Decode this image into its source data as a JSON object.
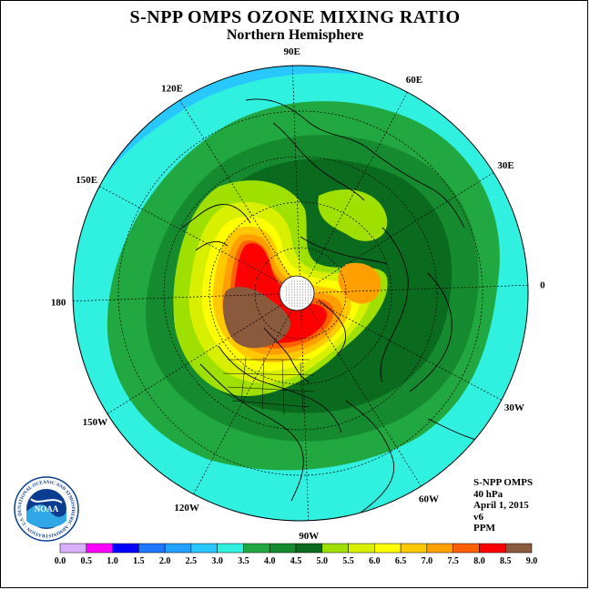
{
  "title": "S-NPP OMPS OZONE MIXING RATIO",
  "subtitle": "Northern Hemisphere",
  "info": {
    "instrument": "S-NPP OMPS",
    "level": "40 hPa",
    "date": "April 1, 2015",
    "version": "v6",
    "units": "PPM"
  },
  "logo": {
    "text": "NOAA",
    "ring_text": "NATIONAL OCEANIC AND ATMOSPHERIC ADMINISTRATION · U.S. DEPARTMENT OF COMMERCE"
  },
  "longitude_labels": [
    "90E",
    "60E",
    "30E",
    "0",
    "30W",
    "60W",
    "90W",
    "120W",
    "150W",
    "180",
    "150E",
    "120E"
  ],
  "colorbar": {
    "ticks": [
      "0.0",
      "0.5",
      "1.0",
      "1.5",
      "2.0",
      "2.5",
      "3.0",
      "3.5",
      "4.0",
      "4.5",
      "5.0",
      "5.5",
      "6.0",
      "6.5",
      "7.0",
      "7.5",
      "8.0",
      "8.5",
      "9.0"
    ],
    "colors": [
      "#c080ff",
      "#d8b0ff",
      "#ff00ff",
      "#0000ff",
      "#1e78ff",
      "#20a0ff",
      "#28c8ff",
      "#30f0e0",
      "#22a840",
      "#158a2e",
      "#0a6a1e",
      "#a0e000",
      "#d8f000",
      "#ffff00",
      "#ffc800",
      "#ffa000",
      "#ff6000",
      "#ff0000",
      "#8b5a3c"
    ]
  },
  "map_colors": {
    "land_outline": "#000000",
    "pole_hole": "#ffffff"
  }
}
